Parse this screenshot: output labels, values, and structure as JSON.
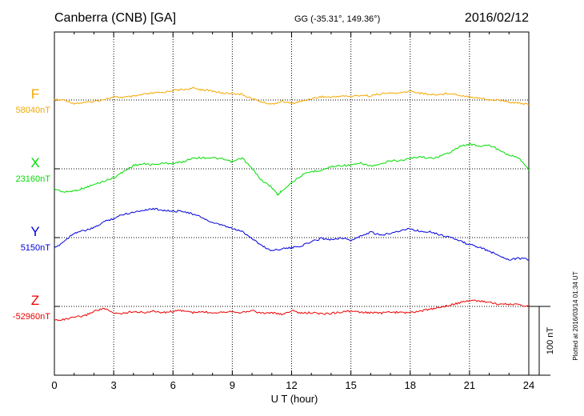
{
  "header": {
    "station": "Canberra (CNB)  [GA]",
    "coords": "GG (-35.31°, 149.36°)",
    "date": "2016/02/12"
  },
  "footer": {
    "plotted": "Plotted at 2016/03/14 01:34 UT"
  },
  "chart_data": {
    "type": "line",
    "title": "Canberra (CNB)  [GA]",
    "xlabel": "U T (hour)",
    "xlim": [
      0,
      24
    ],
    "xticks": [
      "0",
      "3",
      "6",
      "9",
      "12",
      "15",
      "18",
      "21",
      "24"
    ],
    "grid": true,
    "scale_bar": {
      "label": "100 nT",
      "value_nT": 100
    },
    "series": [
      {
        "name": "F",
        "baseline_label": "58040nT",
        "baseline": 58040,
        "color": "#f5a800",
        "x": [
          0,
          0.5,
          1,
          1.5,
          2,
          2.5,
          3,
          3.5,
          4,
          4.5,
          5,
          5.5,
          6,
          6.5,
          7,
          7.5,
          8,
          8.5,
          9,
          9.5,
          10,
          10.5,
          11,
          11.5,
          12,
          12.5,
          13,
          13.5,
          14,
          14.5,
          15,
          15.5,
          16,
          16.5,
          17,
          17.5,
          18,
          18.5,
          19,
          19.5,
          20,
          20.5,
          21,
          21.5,
          22,
          22.5,
          23,
          23.5,
          24
        ],
        "y": [
          58040,
          58040,
          58035,
          58036,
          58038,
          58041,
          58044,
          58044,
          58045,
          58048,
          58050,
          58051,
          58054,
          58055,
          58057,
          58055,
          58053,
          58050,
          58050,
          58048,
          58042,
          58037,
          58034,
          58038,
          58035,
          58038,
          58042,
          58045,
          58044,
          58046,
          58045,
          58047,
          58046,
          58049,
          58050,
          58050,
          58053,
          58050,
          58048,
          58048,
          58050,
          58047,
          58045,
          58043,
          58040,
          58040,
          58037,
          58036,
          58033
        ]
      },
      {
        "name": "X",
        "baseline_label": "23160nT",
        "baseline": 23160,
        "color": "#00dd00",
        "x": [
          0,
          0.5,
          1,
          1.5,
          2,
          2.5,
          3,
          3.5,
          4,
          4.5,
          5,
          5.5,
          6,
          6.5,
          7,
          7.5,
          8,
          8.5,
          9,
          9.5,
          10,
          10.5,
          11,
          11.3,
          11.5,
          12,
          12.5,
          13,
          13.5,
          14,
          14.5,
          15,
          15.5,
          16,
          16.5,
          17,
          17.5,
          18,
          18.5,
          19,
          19.5,
          20,
          20.5,
          21,
          21.5,
          22,
          22.5,
          23,
          23.5,
          24
        ],
        "y": [
          23131,
          23126,
          23128,
          23132,
          23137,
          23142,
          23147,
          23156,
          23165,
          23167,
          23166,
          23168,
          23168,
          23170,
          23176,
          23176,
          23176,
          23174,
          23170,
          23176,
          23160,
          23143,
          23133,
          23122,
          23128,
          23140,
          23150,
          23156,
          23158,
          23163,
          23165,
          23165,
          23168,
          23164,
          23166,
          23172,
          23172,
          23175,
          23178,
          23175,
          23178,
          23184,
          23192,
          23196,
          23193,
          23194,
          23188,
          23180,
          23176,
          23158
        ]
      },
      {
        "name": "Y",
        "baseline_label": "5150nT",
        "baseline": 5150,
        "color": "#0000dd",
        "x": [
          0,
          0.5,
          1,
          1.5,
          2,
          2.5,
          3,
          3.5,
          4,
          4.5,
          5,
          5.5,
          6,
          6.5,
          7,
          7.5,
          8,
          8.5,
          9,
          9.5,
          10,
          10.5,
          11,
          11.5,
          12,
          12.5,
          13,
          13.5,
          14,
          14.5,
          15,
          15.5,
          16,
          16.5,
          17,
          17.5,
          18,
          18.5,
          19,
          19.5,
          20,
          20.5,
          21,
          21.5,
          22,
          22.5,
          23,
          23.5,
          24
        ],
        "y": [
          5134,
          5145,
          5157,
          5160,
          5164,
          5173,
          5178,
          5184,
          5187,
          5190,
          5192,
          5190,
          5188,
          5189,
          5184,
          5179,
          5171,
          5168,
          5163,
          5159,
          5149,
          5138,
          5131,
          5134,
          5135,
          5138,
          5144,
          5149,
          5147,
          5150,
          5146,
          5152,
          5158,
          5153,
          5157,
          5160,
          5163,
          5159,
          5159,
          5154,
          5151,
          5145,
          5140,
          5136,
          5130,
          5124,
          5118,
          5120,
          5118
        ]
      },
      {
        "name": "Z",
        "baseline_label": "-52960nT",
        "baseline": -52960,
        "color": "#ee0000",
        "x": [
          0,
          0.5,
          1,
          1.5,
          2,
          2.5,
          3,
          3.5,
          4,
          4.5,
          5,
          5.5,
          6,
          6.5,
          7,
          7.5,
          8,
          8.5,
          9,
          9.5,
          10,
          10.5,
          11,
          11.5,
          12,
          12.5,
          13,
          13.5,
          14,
          14.5,
          15,
          15.5,
          16,
          16.5,
          17,
          17.5,
          18,
          18.5,
          19,
          19.5,
          20,
          20.5,
          21,
          21.5,
          22,
          22.5,
          23,
          23.5,
          24
        ],
        "y": [
          -52980,
          -52979,
          -52976,
          -52974,
          -52967,
          -52963,
          -52970,
          -52970,
          -52967,
          -52969,
          -52967,
          -52969,
          -52967,
          -52966,
          -52969,
          -52968,
          -52969,
          -52968,
          -52967,
          -52969,
          -52966,
          -52970,
          -52969,
          -52972,
          -52966,
          -52970,
          -52969,
          -52971,
          -52970,
          -52968,
          -52967,
          -52969,
          -52969,
          -52970,
          -52968,
          -52969,
          -52969,
          -52967,
          -52964,
          -52961,
          -52958,
          -52955,
          -52951,
          -52952,
          -52954,
          -52957,
          -52957,
          -52957,
          -52960
        ]
      }
    ]
  }
}
